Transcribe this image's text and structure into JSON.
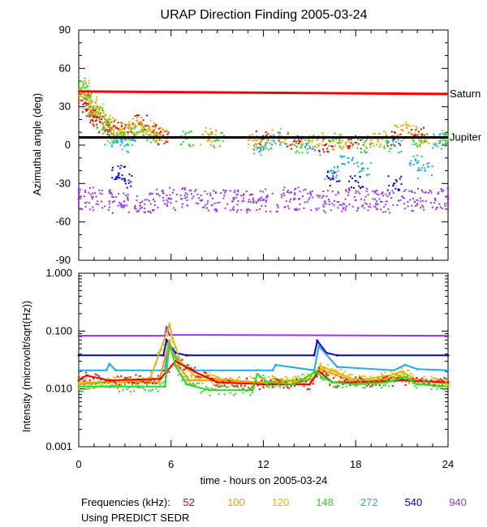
{
  "chart_data": [
    {
      "type": "scatter",
      "title": "URAP Direction Finding  2005-03-24",
      "xlabel": "",
      "ylabel": "Azimuthal angle (deg)",
      "xlim": [
        0,
        24
      ],
      "ylim": [
        -90,
        90
      ],
      "yticks": [
        90,
        60,
        30,
        0,
        -30,
        -60,
        -90
      ],
      "reference_lines": [
        {
          "name": "Saturn",
          "color": "#ff0000",
          "x": [
            0,
            24
          ],
          "y": [
            42,
            40
          ]
        },
        {
          "name": "Jupiter",
          "color": "#000000",
          "x": [
            0,
            24
          ],
          "y": [
            6,
            6
          ]
        }
      ],
      "series": [
        {
          "name": "52",
          "color": "#ee0000",
          "points": [
            [
              0.2,
              35
            ],
            [
              0.6,
              28
            ],
            [
              1,
              22
            ],
            [
              1.4,
              18
            ],
            [
              1.8,
              12
            ],
            [
              2.3,
              15
            ],
            [
              3.2,
              10
            ],
            [
              4,
              18
            ],
            [
              4.8,
              10
            ],
            [
              5.5,
              6
            ],
            [
              12,
              5
            ],
            [
              14,
              3
            ],
            [
              16,
              0
            ],
            [
              18,
              2
            ],
            [
              20.5,
              5
            ],
            [
              22,
              8
            ]
          ]
        },
        {
          "name": "100",
          "color": "#ff9900",
          "points": [
            [
              0.3,
              40
            ],
            [
              0.8,
              30
            ],
            [
              1.3,
              25
            ],
            [
              2,
              14
            ],
            [
              2.8,
              10
            ],
            [
              3.6,
              16
            ],
            [
              4.5,
              12
            ],
            [
              5.3,
              8
            ],
            [
              8.2,
              6
            ],
            [
              11.5,
              4
            ],
            [
              13.5,
              5
            ],
            [
              15,
              3
            ],
            [
              17,
              2
            ],
            [
              19,
              4
            ],
            [
              21,
              12
            ],
            [
              22.5,
              4
            ]
          ]
        },
        {
          "name": "120",
          "color": "#ddbb00",
          "points": [
            [
              0.2,
              45
            ],
            [
              0.7,
              34
            ],
            [
              1.2,
              28
            ],
            [
              1.9,
              20
            ],
            [
              2.6,
              8
            ],
            [
              3.4,
              12
            ],
            [
              4.2,
              14
            ],
            [
              5,
              9
            ],
            [
              8.5,
              8
            ],
            [
              11.8,
              2
            ],
            [
              13,
              7
            ],
            [
              15.5,
              4
            ],
            [
              17.5,
              3
            ],
            [
              19.5,
              5
            ],
            [
              21.5,
              10
            ],
            [
              23.5,
              6
            ]
          ]
        },
        {
          "name": "148",
          "color": "#22dd22",
          "points": [
            [
              0.1,
              50
            ],
            [
              0.5,
              36
            ],
            [
              1.1,
              26
            ],
            [
              1.6,
              14
            ],
            [
              2.2,
              6
            ],
            [
              3,
              6
            ],
            [
              3.8,
              10
            ],
            [
              4.6,
              8
            ],
            [
              7,
              5
            ],
            [
              9,
              4
            ],
            [
              12.2,
              2
            ],
            [
              14.5,
              0
            ],
            [
              16.5,
              4
            ],
            [
              18.5,
              0
            ],
            [
              20,
              3
            ],
            [
              22.2,
              3
            ],
            [
              23.8,
              4
            ]
          ]
        },
        {
          "name": "272",
          "color": "#22aaee",
          "points": [
            [
              2.5,
              2
            ],
            [
              3.2,
              0
            ],
            [
              11.8,
              -2
            ],
            [
              13,
              4
            ],
            [
              15.2,
              -3
            ],
            [
              16.5,
              -22
            ],
            [
              17.5,
              -10
            ],
            [
              18.5,
              -18
            ],
            [
              20.5,
              0
            ],
            [
              22,
              -14
            ],
            [
              22.5,
              -20
            ],
            [
              23.5,
              3
            ]
          ]
        },
        {
          "name": "540",
          "color": "#0000ee",
          "points": [
            [
              2.6,
              -22
            ],
            [
              3,
              -28
            ],
            [
              16.5,
              -26
            ],
            [
              18,
              -28
            ],
            [
              20.5,
              -30
            ]
          ]
        },
        {
          "name": "940",
          "color": "#9933ff",
          "points": [
            [
              0,
              -42
            ],
            [
              2,
              -44
            ],
            [
              4,
              -45
            ],
            [
              6,
              -42
            ],
            [
              8,
              -43
            ],
            [
              10,
              -44
            ],
            [
              12,
              -43
            ],
            [
              14,
              -42
            ],
            [
              16,
              -44
            ],
            [
              18,
              -43
            ],
            [
              20,
              -44
            ],
            [
              22,
              -43
            ],
            [
              24,
              -42
            ]
          ]
        }
      ]
    },
    {
      "type": "line",
      "title": "",
      "xlabel": "time - hours on 2005-03-24",
      "ylabel": "Intensity (microvolt/sqrt(Hz))",
      "xlim": [
        0,
        24
      ],
      "xticks": [
        0,
        6,
        12,
        18,
        24
      ],
      "ylim": [
        0.001,
        1.0
      ],
      "yscale": "log",
      "yticks": [
        "1.000",
        "0.100",
        "0.010",
        "0.001"
      ],
      "series": [
        {
          "name": "940",
          "color": "#9933ff",
          "x": [
            0,
            5.6,
            5.7,
            5.9,
            24
          ],
          "y": [
            0.083,
            0.083,
            0.115,
            0.086,
            0.083
          ]
        },
        {
          "name": "540",
          "color": "#0000ee",
          "x": [
            0,
            5.5,
            5.7,
            6.3,
            7.0,
            15.3,
            15.5,
            16.1,
            16.8,
            24
          ],
          "y": [
            0.038,
            0.038,
            0.07,
            0.042,
            0.038,
            0.038,
            0.068,
            0.042,
            0.038,
            0.038
          ]
        },
        {
          "name": "272",
          "color": "#22aaee",
          "x": [
            0,
            1.8,
            2.0,
            2.4,
            5.6,
            5.8,
            6.6,
            7.5,
            12.6,
            12.8,
            15.3,
            15.6,
            16.8,
            20.5,
            21.2,
            22,
            24
          ],
          "y": [
            0.021,
            0.021,
            0.027,
            0.021,
            0.021,
            0.06,
            0.028,
            0.021,
            0.021,
            0.026,
            0.021,
            0.055,
            0.024,
            0.021,
            0.026,
            0.022,
            0.021
          ]
        },
        {
          "name": "120",
          "color": "#ddbb00",
          "x": [
            0,
            3,
            4.6,
            5.9,
            6.1,
            6.6,
            7.6,
            9,
            11.5,
            15.2,
            15.7,
            18,
            20.2,
            21,
            22,
            24
          ],
          "y": [
            0.013,
            0.013,
            0.014,
            0.13,
            0.075,
            0.03,
            0.016,
            0.015,
            0.013,
            0.015,
            0.025,
            0.014,
            0.017,
            0.02,
            0.014,
            0.013
          ]
        },
        {
          "name": "100",
          "color": "#ff9900",
          "x": [
            0,
            2,
            5.2,
            5.9,
            6.0,
            6.5,
            7.2,
            9,
            11.5,
            15.2,
            15.7,
            18,
            21,
            24
          ],
          "y": [
            0.012,
            0.013,
            0.013,
            0.07,
            0.05,
            0.025,
            0.014,
            0.014,
            0.013,
            0.014,
            0.022,
            0.013,
            0.016,
            0.012
          ]
        },
        {
          "name": "52",
          "color": "#ee0000",
          "x": [
            0,
            0.5,
            2,
            5.3,
            6.3,
            7.5,
            9,
            12,
            15,
            15.6,
            16.5,
            18,
            21,
            24
          ],
          "y": [
            0.014,
            0.017,
            0.014,
            0.015,
            0.03,
            0.02,
            0.013,
            0.012,
            0.012,
            0.02,
            0.013,
            0.013,
            0.014,
            0.013
          ]
        },
        {
          "name": "148",
          "color": "#22dd22",
          "x": [
            0,
            2,
            4,
            5.6,
            5.9,
            6.3,
            7.0,
            8.5,
            11.3,
            11.6,
            12.3,
            14,
            15.4,
            15.8,
            16.5,
            18,
            20,
            21.2,
            22,
            24
          ],
          "y": [
            0.011,
            0.011,
            0.011,
            0.011,
            0.06,
            0.025,
            0.012,
            0.0095,
            0.0095,
            0.018,
            0.013,
            0.012,
            0.02,
            0.016,
            0.013,
            0.012,
            0.013,
            0.016,
            0.012,
            0.011
          ]
        }
      ]
    }
  ],
  "legend": {
    "label": "Frequencies (kHz):",
    "items": [
      {
        "name": "52",
        "color": "#ee0000"
      },
      {
        "name": "100",
        "color": "#ff9900"
      },
      {
        "name": "120",
        "color": "#ddbb00"
      },
      {
        "name": "148",
        "color": "#22dd22"
      },
      {
        "name": "272",
        "color": "#22aaee"
      },
      {
        "name": "540",
        "color": "#0000ee"
      },
      {
        "name": "940",
        "color": "#9933ff"
      }
    ]
  },
  "source_note": "Using PREDICT SEDR"
}
